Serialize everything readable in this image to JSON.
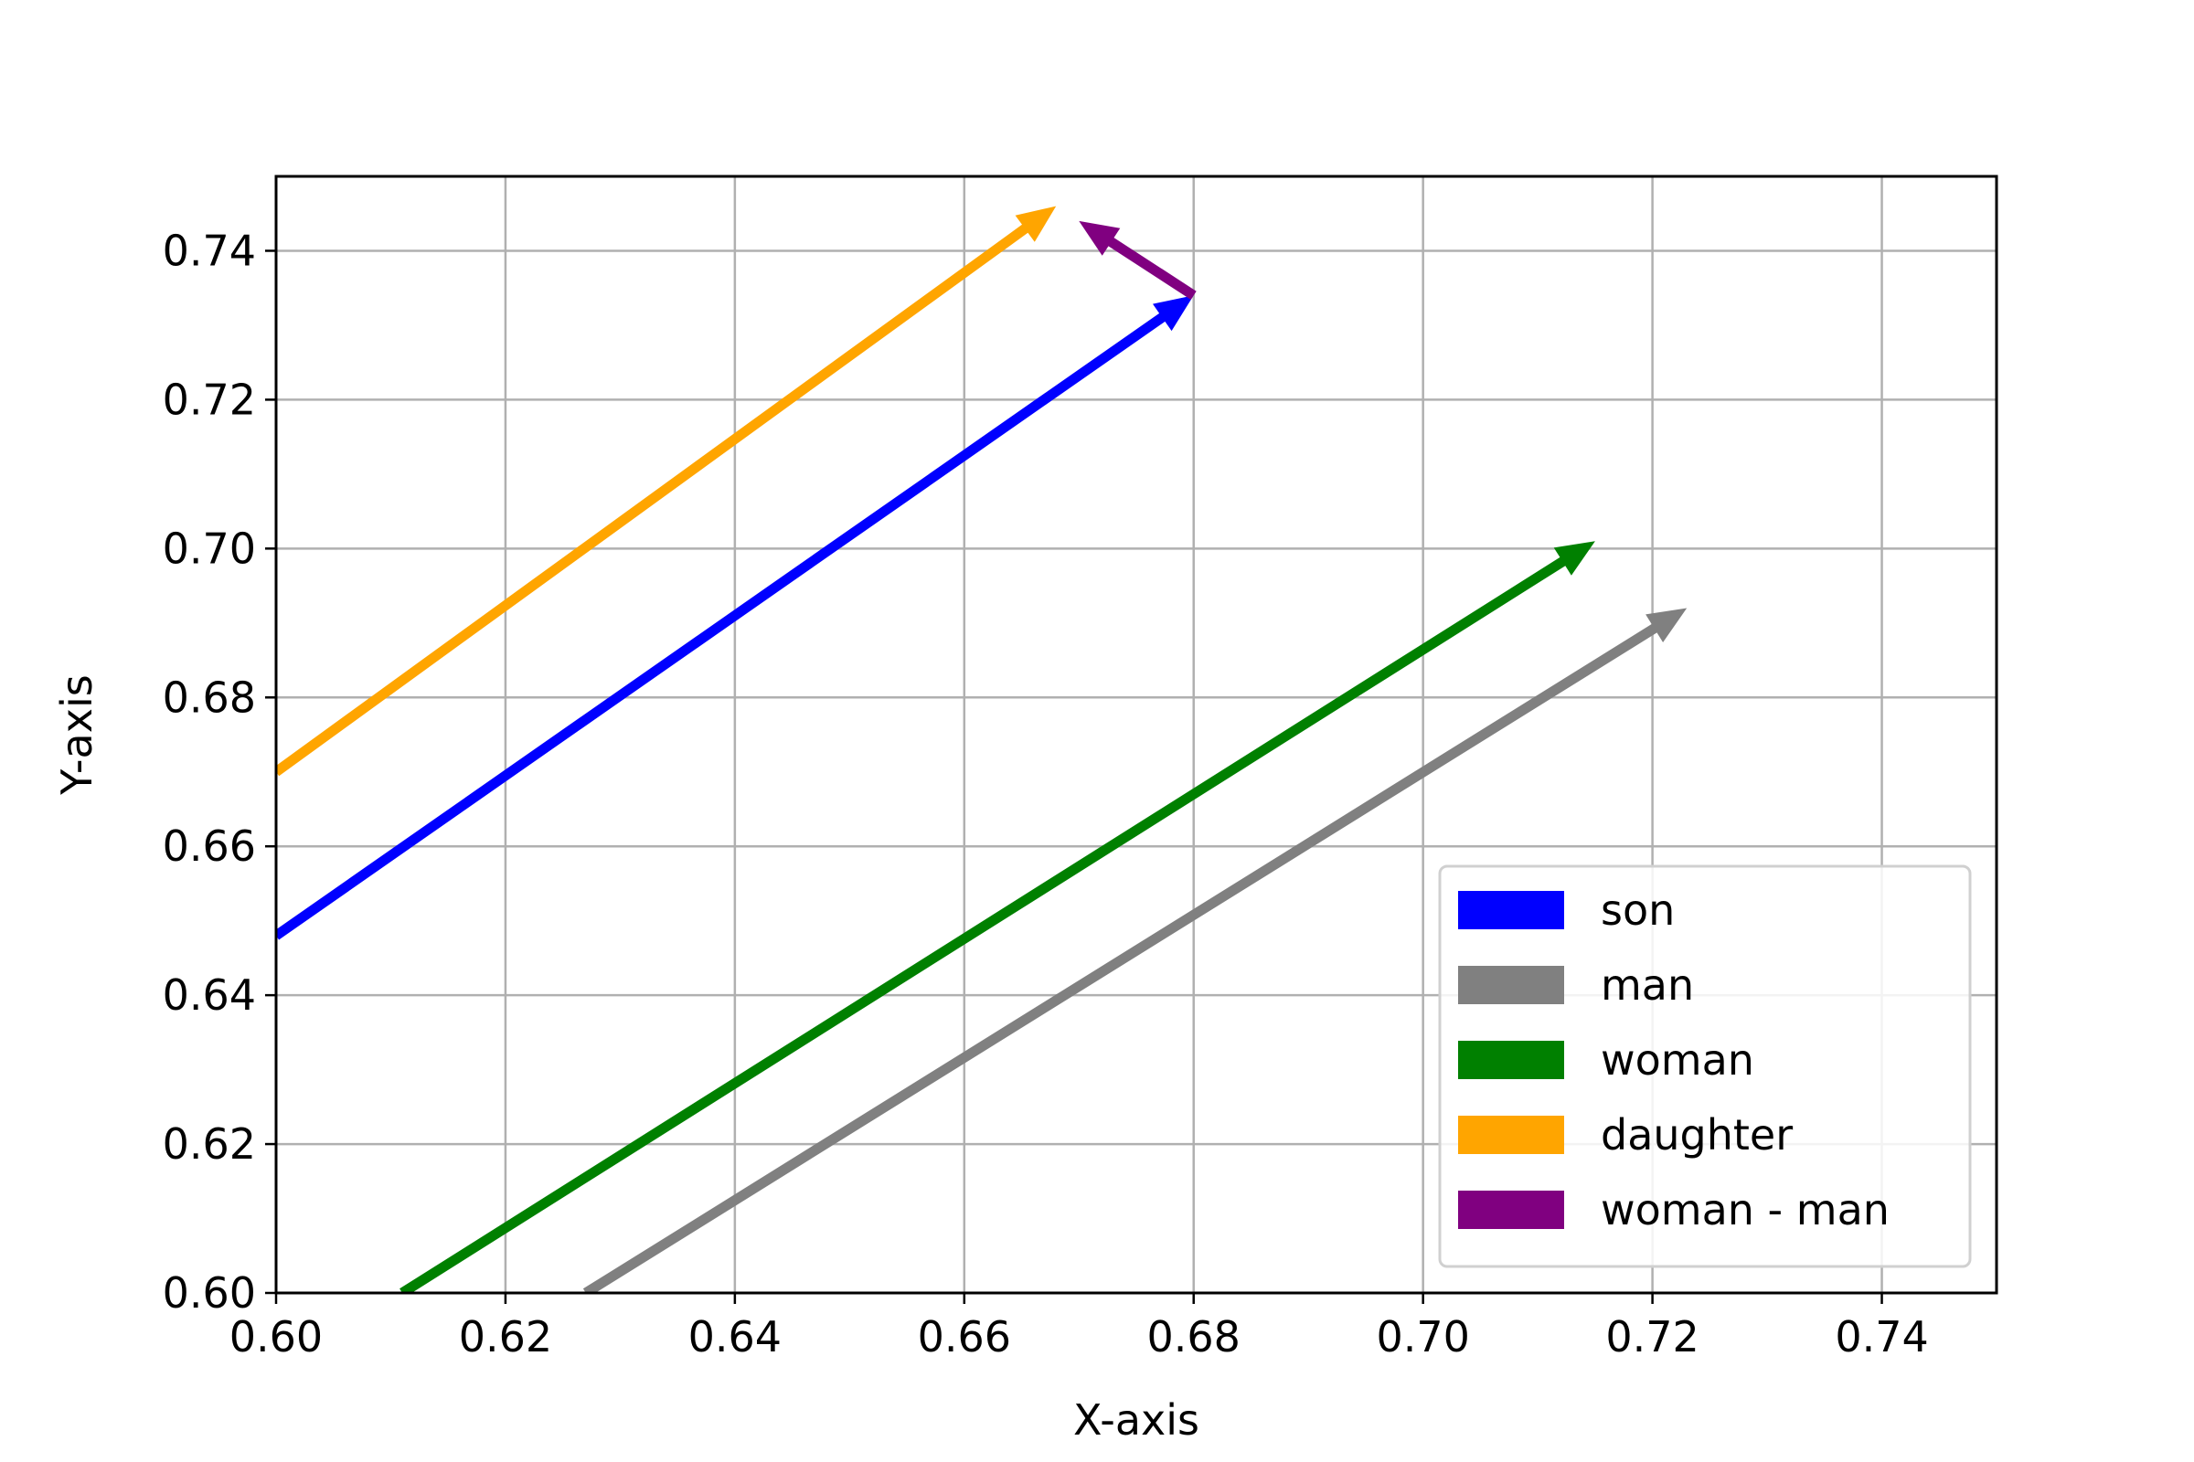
{
  "chart_data": {
    "type": "quiver",
    "title": "",
    "xlabel": "X-axis",
    "ylabel": "Y-axis",
    "xlim": [
      0.6,
      0.75
    ],
    "ylim": [
      0.6,
      0.75
    ],
    "xticks": [
      "0.60",
      "0.62",
      "0.64",
      "0.66",
      "0.68",
      "0.70",
      "0.72",
      "0.74"
    ],
    "yticks": [
      "0.60",
      "0.62",
      "0.64",
      "0.66",
      "0.68",
      "0.70",
      "0.72",
      "0.74"
    ],
    "grid": true,
    "legend_position": "lower-right",
    "series": [
      {
        "name": "son",
        "color": "#0000ff",
        "x0": 0.6,
        "y0": 0.648,
        "x1": 0.68,
        "y1": 0.734
      },
      {
        "name": "man",
        "color": "#808080",
        "x0": 0.627,
        "y0": 0.6,
        "x1": 0.723,
        "y1": 0.692
      },
      {
        "name": "woman",
        "color": "#008000",
        "x0": 0.611,
        "y0": 0.6,
        "x1": 0.715,
        "y1": 0.701
      },
      {
        "name": "daughter",
        "color": "#ffa500",
        "x0": 0.6,
        "y0": 0.67,
        "x1": 0.668,
        "y1": 0.746
      },
      {
        "name": "woman - man",
        "color": "#800080",
        "x0": 0.68,
        "y0": 0.734,
        "x1": 0.67,
        "y1": 0.744
      }
    ]
  }
}
